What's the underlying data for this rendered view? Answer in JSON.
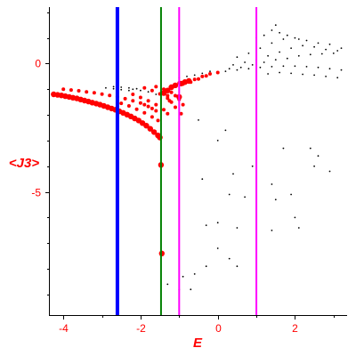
{
  "chart_data": {
    "type": "scatter",
    "title": "",
    "xlabel": "E",
    "ylabel": "<J3>",
    "xlim": [
      -4.35,
      3.35
    ],
    "ylim": [
      -9.8,
      2.2
    ],
    "x_ticks": [
      -4,
      -2,
      0,
      2
    ],
    "x_tick_labels": [
      "-4",
      "-2",
      "0",
      "2"
    ],
    "y_ticks": [
      0,
      -5
    ],
    "y_tick_labels": [
      "0",
      "-5"
    ],
    "grid": false,
    "legend": "none",
    "colors": {
      "red_points": "#ff0000",
      "black_points": "#000000",
      "line_blue": "#0000ff",
      "line_green": "#008000",
      "line_magenta": "#ff00ff",
      "axis_text": "#ff0000"
    },
    "vertical_lines": [
      {
        "x": -2.6,
        "color": "#0000ff",
        "width": 4
      },
      {
        "x": -1.47,
        "color": "#008000",
        "width": 2
      },
      {
        "x": -1.0,
        "color": "#ff00ff",
        "width": 2
      },
      {
        "x": 1.0,
        "color": "#ff00ff",
        "width": 2
      }
    ],
    "series": [
      {
        "color": "#ff0000",
        "marker": "large",
        "points": [
          [
            -4.25,
            -1.2
          ],
          [
            -4.15,
            -1.22
          ],
          [
            -4.05,
            -1.24
          ],
          [
            -3.95,
            -1.27
          ],
          [
            -3.85,
            -1.3
          ],
          [
            -3.75,
            -1.33
          ],
          [
            -3.65,
            -1.36
          ],
          [
            -3.55,
            -1.4
          ],
          [
            -3.45,
            -1.44
          ],
          [
            -3.35,
            -1.48
          ],
          [
            -3.25,
            -1.52
          ],
          [
            -3.15,
            -1.56
          ],
          [
            -3.05,
            -1.6
          ],
          [
            -2.95,
            -1.65
          ],
          [
            -2.85,
            -1.7
          ],
          [
            -2.75,
            -1.75
          ],
          [
            -2.65,
            -1.8
          ],
          [
            -2.55,
            -1.86
          ],
          [
            -2.45,
            -1.92
          ],
          [
            -2.35,
            -1.99
          ],
          [
            -2.25,
            -2.06
          ],
          [
            -2.15,
            -2.14
          ],
          [
            -2.05,
            -2.22
          ],
          [
            -1.95,
            -2.32
          ],
          [
            -1.85,
            -2.42
          ],
          [
            -1.75,
            -2.54
          ],
          [
            -1.65,
            -2.67
          ],
          [
            -1.55,
            -2.8
          ],
          [
            -1.5,
            -2.88
          ],
          [
            -1.47,
            -3.95
          ],
          [
            -1.4,
            -1.15
          ],
          [
            -1.3,
            -1.05
          ],
          [
            -1.2,
            -0.92
          ],
          [
            -1.1,
            -0.85
          ],
          [
            -0.95,
            -0.78
          ],
          [
            -0.85,
            -0.72
          ],
          [
            -0.75,
            -0.68
          ],
          [
            -1.0,
            -1.3
          ],
          [
            -1.45,
            -7.4
          ]
        ]
      },
      {
        "color": "#ff0000",
        "marker": "small",
        "points": [
          [
            -4.0,
            -1.0
          ],
          [
            -3.8,
            -1.03
          ],
          [
            -3.6,
            -1.06
          ],
          [
            -3.4,
            -1.1
          ],
          [
            -3.2,
            -1.14
          ],
          [
            -3.0,
            -1.19
          ],
          [
            -2.8,
            -1.24
          ],
          [
            -2.6,
            -1.3
          ],
          [
            -2.4,
            -1.37
          ],
          [
            -2.2,
            -1.45
          ],
          [
            -2.0,
            -1.54
          ],
          [
            -1.9,
            -1.6
          ],
          [
            -1.8,
            -1.67
          ],
          [
            -1.7,
            -1.75
          ],
          [
            -1.6,
            -1.84
          ],
          [
            -2.5,
            -1.55
          ],
          [
            -2.3,
            -1.65
          ],
          [
            -2.1,
            -1.78
          ],
          [
            -1.9,
            -1.92
          ],
          [
            -1.7,
            -2.08
          ],
          [
            -1.55,
            -2.22
          ],
          [
            -2.2,
            -1.2
          ],
          [
            -2.0,
            -1.32
          ],
          [
            -1.8,
            -1.45
          ],
          [
            -1.6,
            -1.6
          ],
          [
            -1.4,
            -1.8
          ],
          [
            -1.3,
            -1.95
          ],
          [
            -1.9,
            -0.95
          ],
          [
            -1.7,
            -1.05
          ],
          [
            -1.5,
            -1.18
          ],
          [
            -1.3,
            -1.35
          ],
          [
            -1.2,
            -1.5
          ],
          [
            -1.1,
            -1.7
          ],
          [
            -1.6,
            -0.9
          ],
          [
            -1.4,
            -1.0
          ],
          [
            -1.2,
            -1.12
          ],
          [
            -1.1,
            -1.25
          ],
          [
            -1.0,
            -1.4
          ],
          [
            -0.9,
            -1.6
          ],
          [
            -1.0,
            -0.75
          ],
          [
            -0.8,
            -0.7
          ],
          [
            -0.6,
            -0.62
          ],
          [
            -0.4,
            -0.5
          ],
          [
            -0.2,
            -0.4
          ],
          [
            0.0,
            -0.35
          ],
          [
            -0.9,
            -0.8
          ],
          [
            -0.7,
            -0.72
          ],
          [
            -0.5,
            -0.6
          ],
          [
            -0.3,
            -0.48
          ],
          [
            -1.3,
            -1.25
          ],
          [
            -1.25,
            -1.45
          ],
          [
            -0.95,
            -1.95
          ]
        ]
      },
      {
        "color": "#000000",
        "marker": "tiny",
        "points": [
          [
            -2.9,
            -0.95
          ],
          [
            -2.7,
            -0.98
          ],
          [
            -2.5,
            -1.02
          ],
          [
            -2.3,
            -1.05
          ],
          [
            -2.7,
            -0.9
          ],
          [
            -2.5,
            -0.92
          ],
          [
            -2.3,
            -0.95
          ],
          [
            -2.1,
            -0.98
          ],
          [
            -2.2,
            -1.0
          ],
          [
            -2.0,
            -1.05
          ],
          [
            -1.8,
            -1.1
          ],
          [
            -1.6,
            -1.2
          ],
          [
            -1.0,
            -0.55
          ],
          [
            -0.8,
            -0.5
          ],
          [
            -0.6,
            -0.45
          ],
          [
            -0.4,
            -0.38
          ],
          [
            -0.2,
            -0.3
          ],
          [
            0.3,
            -0.2
          ],
          [
            0.6,
            -0.15
          ],
          [
            0.9,
            -0.05
          ],
          [
            1.2,
            0.05
          ],
          [
            1.5,
            0.15
          ],
          [
            1.8,
            0.2
          ],
          [
            2.1,
            0.3
          ],
          [
            2.4,
            0.35
          ],
          [
            2.7,
            0.38
          ],
          [
            3.0,
            0.4
          ],
          [
            0.4,
            -0.05
          ],
          [
            0.7,
            0.05
          ],
          [
            1.0,
            0.15
          ],
          [
            1.3,
            0.3
          ],
          [
            1.6,
            0.45
          ],
          [
            1.9,
            0.6
          ],
          [
            2.2,
            0.7
          ],
          [
            2.5,
            0.65
          ],
          [
            2.8,
            0.55
          ],
          [
            3.1,
            0.5
          ],
          [
            0.5,
            0.25
          ],
          [
            0.8,
            0.4
          ],
          [
            1.1,
            0.6
          ],
          [
            1.4,
            0.8
          ],
          [
            1.7,
            0.95
          ],
          [
            2.0,
            1.0
          ],
          [
            2.3,
            0.9
          ],
          [
            1.0,
            1.0
          ],
          [
            1.2,
            1.1
          ],
          [
            1.4,
            1.3
          ],
          [
            1.5,
            1.5
          ],
          [
            1.6,
            1.2
          ],
          [
            1.8,
            1.1
          ],
          [
            2.1,
            0.95
          ],
          [
            2.6,
            0.8
          ],
          [
            2.9,
            0.75
          ],
          [
            3.2,
            0.6
          ],
          [
            0.2,
            -0.3
          ],
          [
            0.5,
            -0.25
          ],
          [
            0.8,
            -0.2
          ],
          [
            1.1,
            -0.15
          ],
          [
            1.4,
            -0.12
          ],
          [
            1.7,
            -0.1
          ],
          [
            2.0,
            -0.1
          ],
          [
            2.3,
            -0.12
          ],
          [
            2.6,
            -0.15
          ],
          [
            2.9,
            -0.2
          ],
          [
            3.2,
            -0.25
          ],
          [
            1.3,
            -0.4
          ],
          [
            1.6,
            -0.35
          ],
          [
            1.9,
            -0.38
          ],
          [
            2.2,
            -0.42
          ],
          [
            2.5,
            -0.45
          ],
          [
            2.8,
            -0.5
          ],
          [
            3.1,
            -0.55
          ],
          [
            -0.5,
            -2.2
          ],
          [
            0.2,
            -2.6
          ],
          [
            0.4,
            -4.3
          ],
          [
            0.9,
            -4.0
          ],
          [
            1.4,
            -4.7
          ],
          [
            1.7,
            -3.3
          ],
          [
            2.4,
            -3.3
          ],
          [
            2.5,
            -4.0
          ],
          [
            2.6,
            -3.6
          ],
          [
            2.9,
            -4.2
          ],
          [
            0.0,
            -3.0
          ],
          [
            -0.4,
            -4.5
          ],
          [
            0.3,
            -5.1
          ],
          [
            0.7,
            -5.2
          ],
          [
            1.5,
            -5.3
          ],
          [
            1.9,
            -5.1
          ],
          [
            -0.3,
            -6.3
          ],
          [
            0.0,
            -6.2
          ],
          [
            0.5,
            -6.4
          ],
          [
            1.4,
            -6.5
          ],
          [
            2.0,
            -6.0
          ],
          [
            2.1,
            -6.4
          ],
          [
            0.0,
            -7.2
          ],
          [
            0.3,
            -7.6
          ],
          [
            0.5,
            -7.9
          ],
          [
            -0.3,
            -7.9
          ],
          [
            -0.6,
            -8.2
          ],
          [
            -0.9,
            -8.3
          ],
          [
            -1.3,
            -8.6
          ],
          [
            -0.7,
            -8.8
          ],
          [
            -1.0,
            -8.8
          ]
        ]
      }
    ]
  }
}
